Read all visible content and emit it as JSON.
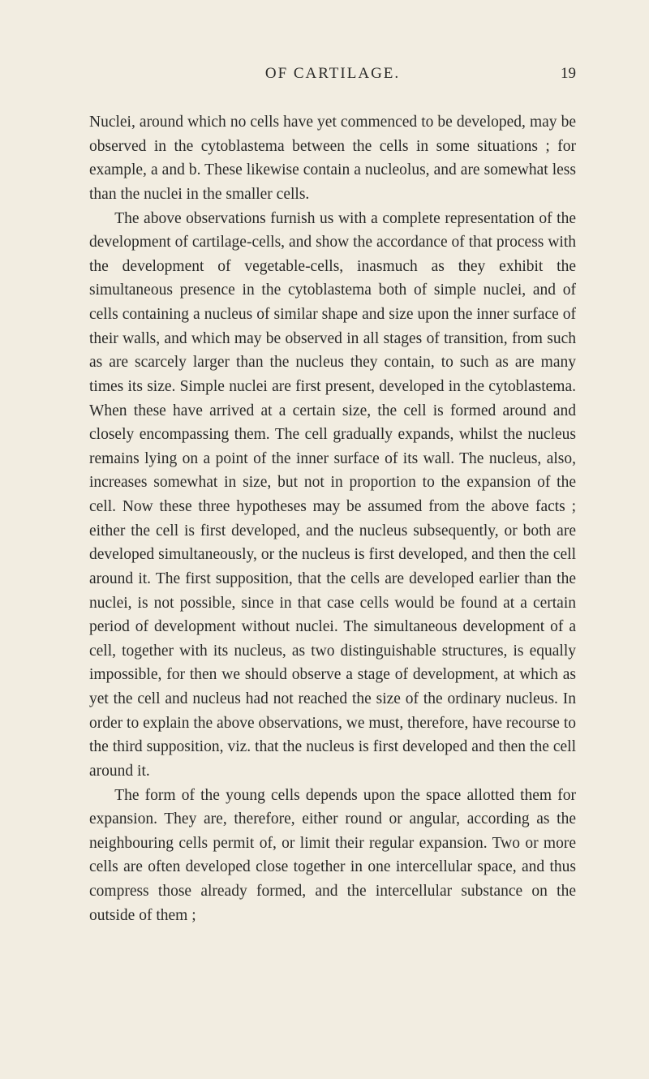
{
  "header": {
    "running_title": "OF CARTILAGE.",
    "page_number": "19"
  },
  "paragraphs": [
    "Nuclei, around which no cells have yet commenced to be de­veloped, may be observed in the cytoblastema between the cells in some situations ; for example, a and b. These like­wise contain a nucleolus, and are somewhat less than the nuclei in the smaller cells.",
    "The above observations furnish us with a complete repre­sentation of the development of cartilage-cells, and show the accordance of that process with the development of vegetable-cells, inasmuch as they exhibit the simultaneous presence in the cytoblastema both of simple nuclei, and of cells containing a nucleus of similar shape and size upon the inner surface of their walls, and which may be observed in all stages of tran­sition, from such as are scarcely larger than the nucleus they contain, to such as are many times its size. Simple nuclei are first present, developed in the cytoblastema. When these have arrived at a certain size, the cell is formed around and closely encompassing them. The cell gradually expands, whilst the nucleus remains lying on a point of the inner surface of its wall. The nucleus, also, increases somewhat in size, but not in proportion to the expansion of the cell. Now these three hy­potheses may be assumed from the above facts ; either the cell is first developed, and the nucleus subsequently, or both are developed simultaneously, or the nucleus is first developed, and then the cell around it. The first supposition, that the cells are developed earlier than the nuclei, is not possible, since in that case cells would be found at a certain period of deve­lopment without nuclei. The simultaneous development of a cell, together with its nucleus, as two distinguishable struc­tures, is equally impossible, for then we should observe a stage of development, at which as yet the cell and nucleus had not reached the size of the ordinary nucleus. In order to explain the above observations, we must, therefore, have recourse to the third supposition, viz. that the nucleus is first developed and then the cell around it.",
    "The form of the young cells depends upon the space allotted them for expansion. They are, therefore, either round or angular, according as the neighbouring cells permit of, or limit their re­gular expansion. Two or more cells are often developed close to­gether in one intercellular space, and thus compress those already formed, and the intercellular substance on the outside of them ;"
  ]
}
